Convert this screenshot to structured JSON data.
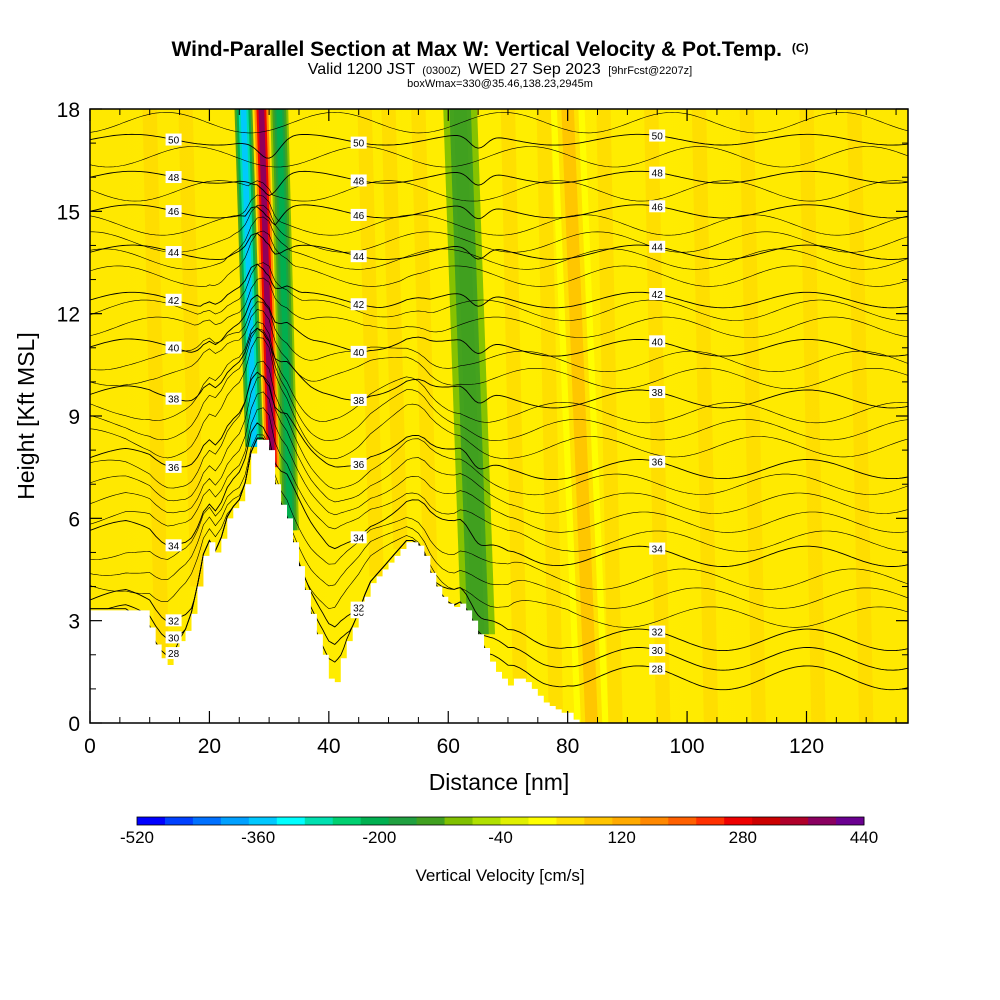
{
  "titles": {
    "main": "Wind-Parallel Section at Max W: Vertical Velocity & Pot.Temp.",
    "main_suffix": "(C)",
    "valid_a": "Valid 1200 JST",
    "valid_b": "(0300Z)",
    "valid_c": "WED 27 Sep 2023",
    "valid_d": "[9hrFcst@2207z]",
    "subline": "boxWmax=330@35.46,138.23,2945m"
  },
  "chart_data": {
    "type": "heatmap",
    "xlabel": "Distance [nm]",
    "ylabel": "Height [Kft MSL]",
    "xlim": [
      0,
      137
    ],
    "ylim": [
      0,
      18
    ],
    "x_ticks": [
      0,
      20,
      40,
      60,
      80,
      100,
      120
    ],
    "y_ticks": [
      0,
      3,
      6,
      9,
      12,
      15,
      18
    ],
    "x_tick_labels": [
      "0",
      "20",
      "40",
      "60",
      "80",
      "100",
      "120"
    ],
    "y_tick_labels": [
      "0",
      "3",
      "6",
      "9",
      "12",
      "15",
      "18"
    ],
    "terrain": [
      [
        0,
        3.3
      ],
      [
        6,
        3.3
      ],
      [
        10,
        2.8
      ],
      [
        11,
        2.3
      ],
      [
        12,
        1.9
      ],
      [
        13,
        1.7
      ],
      [
        14,
        2.0
      ],
      [
        15,
        2.4
      ],
      [
        16,
        2.7
      ],
      [
        17,
        3.2
      ],
      [
        18,
        4.0
      ],
      [
        19,
        4.9
      ],
      [
        20,
        5.3
      ],
      [
        21,
        5.0
      ],
      [
        22,
        5.4
      ],
      [
        23,
        6.0
      ],
      [
        24,
        6.3
      ],
      [
        25,
        6.5
      ],
      [
        26,
        7.0
      ],
      [
        27,
        7.9
      ],
      [
        28,
        8.3
      ],
      [
        29,
        8.3
      ],
      [
        30,
        8.0
      ],
      [
        31,
        7.0
      ],
      [
        32,
        6.4
      ],
      [
        33,
        6.0
      ],
      [
        34,
        5.3
      ],
      [
        35,
        4.6
      ],
      [
        36,
        3.9
      ],
      [
        37,
        3.2
      ],
      [
        38,
        2.6
      ],
      [
        39,
        2.0
      ],
      [
        40,
        1.3
      ],
      [
        41,
        1.2
      ],
      [
        42,
        1.9
      ],
      [
        43,
        2.4
      ],
      [
        44,
        2.8
      ],
      [
        45,
        3.2
      ],
      [
        46,
        3.7
      ],
      [
        47,
        4.1
      ],
      [
        48,
        4.3
      ],
      [
        49,
        4.5
      ],
      [
        50,
        4.7
      ],
      [
        51,
        4.9
      ],
      [
        52,
        5.1
      ],
      [
        53,
        5.3
      ],
      [
        54,
        5.3
      ],
      [
        55,
        5.2
      ],
      [
        56,
        4.9
      ],
      [
        57,
        4.4
      ],
      [
        58,
        4.0
      ],
      [
        59,
        3.7
      ],
      [
        60,
        3.5
      ],
      [
        61,
        3.4
      ],
      [
        62,
        3.5
      ],
      [
        63,
        3.3
      ],
      [
        64,
        3.0
      ],
      [
        65,
        2.6
      ],
      [
        66,
        2.2
      ],
      [
        67,
        1.8
      ],
      [
        68,
        1.5
      ],
      [
        69,
        1.3
      ],
      [
        70,
        1.1
      ],
      [
        71,
        1.3
      ],
      [
        72,
        1.3
      ],
      [
        73,
        1.2
      ],
      [
        74,
        1.0
      ],
      [
        75,
        0.8
      ],
      [
        76,
        0.6
      ],
      [
        77,
        0.5
      ],
      [
        78,
        0.4
      ],
      [
        79,
        0.3
      ],
      [
        80,
        0.3
      ],
      [
        81,
        0.1
      ],
      [
        82,
        0.0
      ],
      [
        137,
        0.0
      ]
    ],
    "vertical_velocity_colorbar": {
      "title": "Vertical Velocity [cm/s]",
      "min": -520,
      "max": 440,
      "step": 40,
      "tick_values": [
        -520,
        -360,
        -200,
        -40,
        120,
        280,
        440
      ],
      "tick_labels": [
        "-520",
        "-360",
        "-200",
        "-40",
        "120",
        "280",
        "440"
      ],
      "colors": [
        "#0000ff",
        "#0040ff",
        "#0070ff",
        "#00a0ff",
        "#00c8ff",
        "#00ffff",
        "#00e0b0",
        "#00d070",
        "#00b050",
        "#20a040",
        "#40a020",
        "#80c000",
        "#b0e000",
        "#e0f000",
        "#ffff00",
        "#ffe000",
        "#ffc400",
        "#ffaa00",
        "#ff8800",
        "#ff6000",
        "#ff3000",
        "#ee0000",
        "#cc0000",
        "#b0002a",
        "#8a0060",
        "#6a0090"
      ]
    },
    "wave_features": [
      {
        "kind": "updraft",
        "x": 30.5,
        "peak_cm_s": 440
      },
      {
        "kind": "downdraft",
        "x": 27.5,
        "peak_cm_s": -360
      },
      {
        "kind": "downdraft",
        "x": 33.5,
        "peak_cm_s": -200
      },
      {
        "kind": "downdraft",
        "x": 65,
        "peak_cm_s": -120
      },
      {
        "kind": "updraft",
        "x": 84,
        "peak_cm_s": 120
      }
    ],
    "theta_contours": [
      {
        "label": "28",
        "level_kft": 2.0
      },
      {
        "label": "30",
        "level_kft": 2.5
      },
      {
        "label": "32",
        "level_kft": 3.0
      },
      {
        "label": "34",
        "level_kft": 5.2
      },
      {
        "label": "36",
        "level_kft": 7.5
      },
      {
        "label": "38",
        "level_kft": 9.5
      },
      {
        "label": "40",
        "level_kft": 11.0
      },
      {
        "label": "42",
        "level_kft": 12.4
      },
      {
        "label": "44",
        "level_kft": 13.8
      },
      {
        "label": "46",
        "level_kft": 15.0
      },
      {
        "label": "48",
        "level_kft": 16.0
      },
      {
        "label": "50",
        "level_kft": 17.1
      }
    ]
  }
}
